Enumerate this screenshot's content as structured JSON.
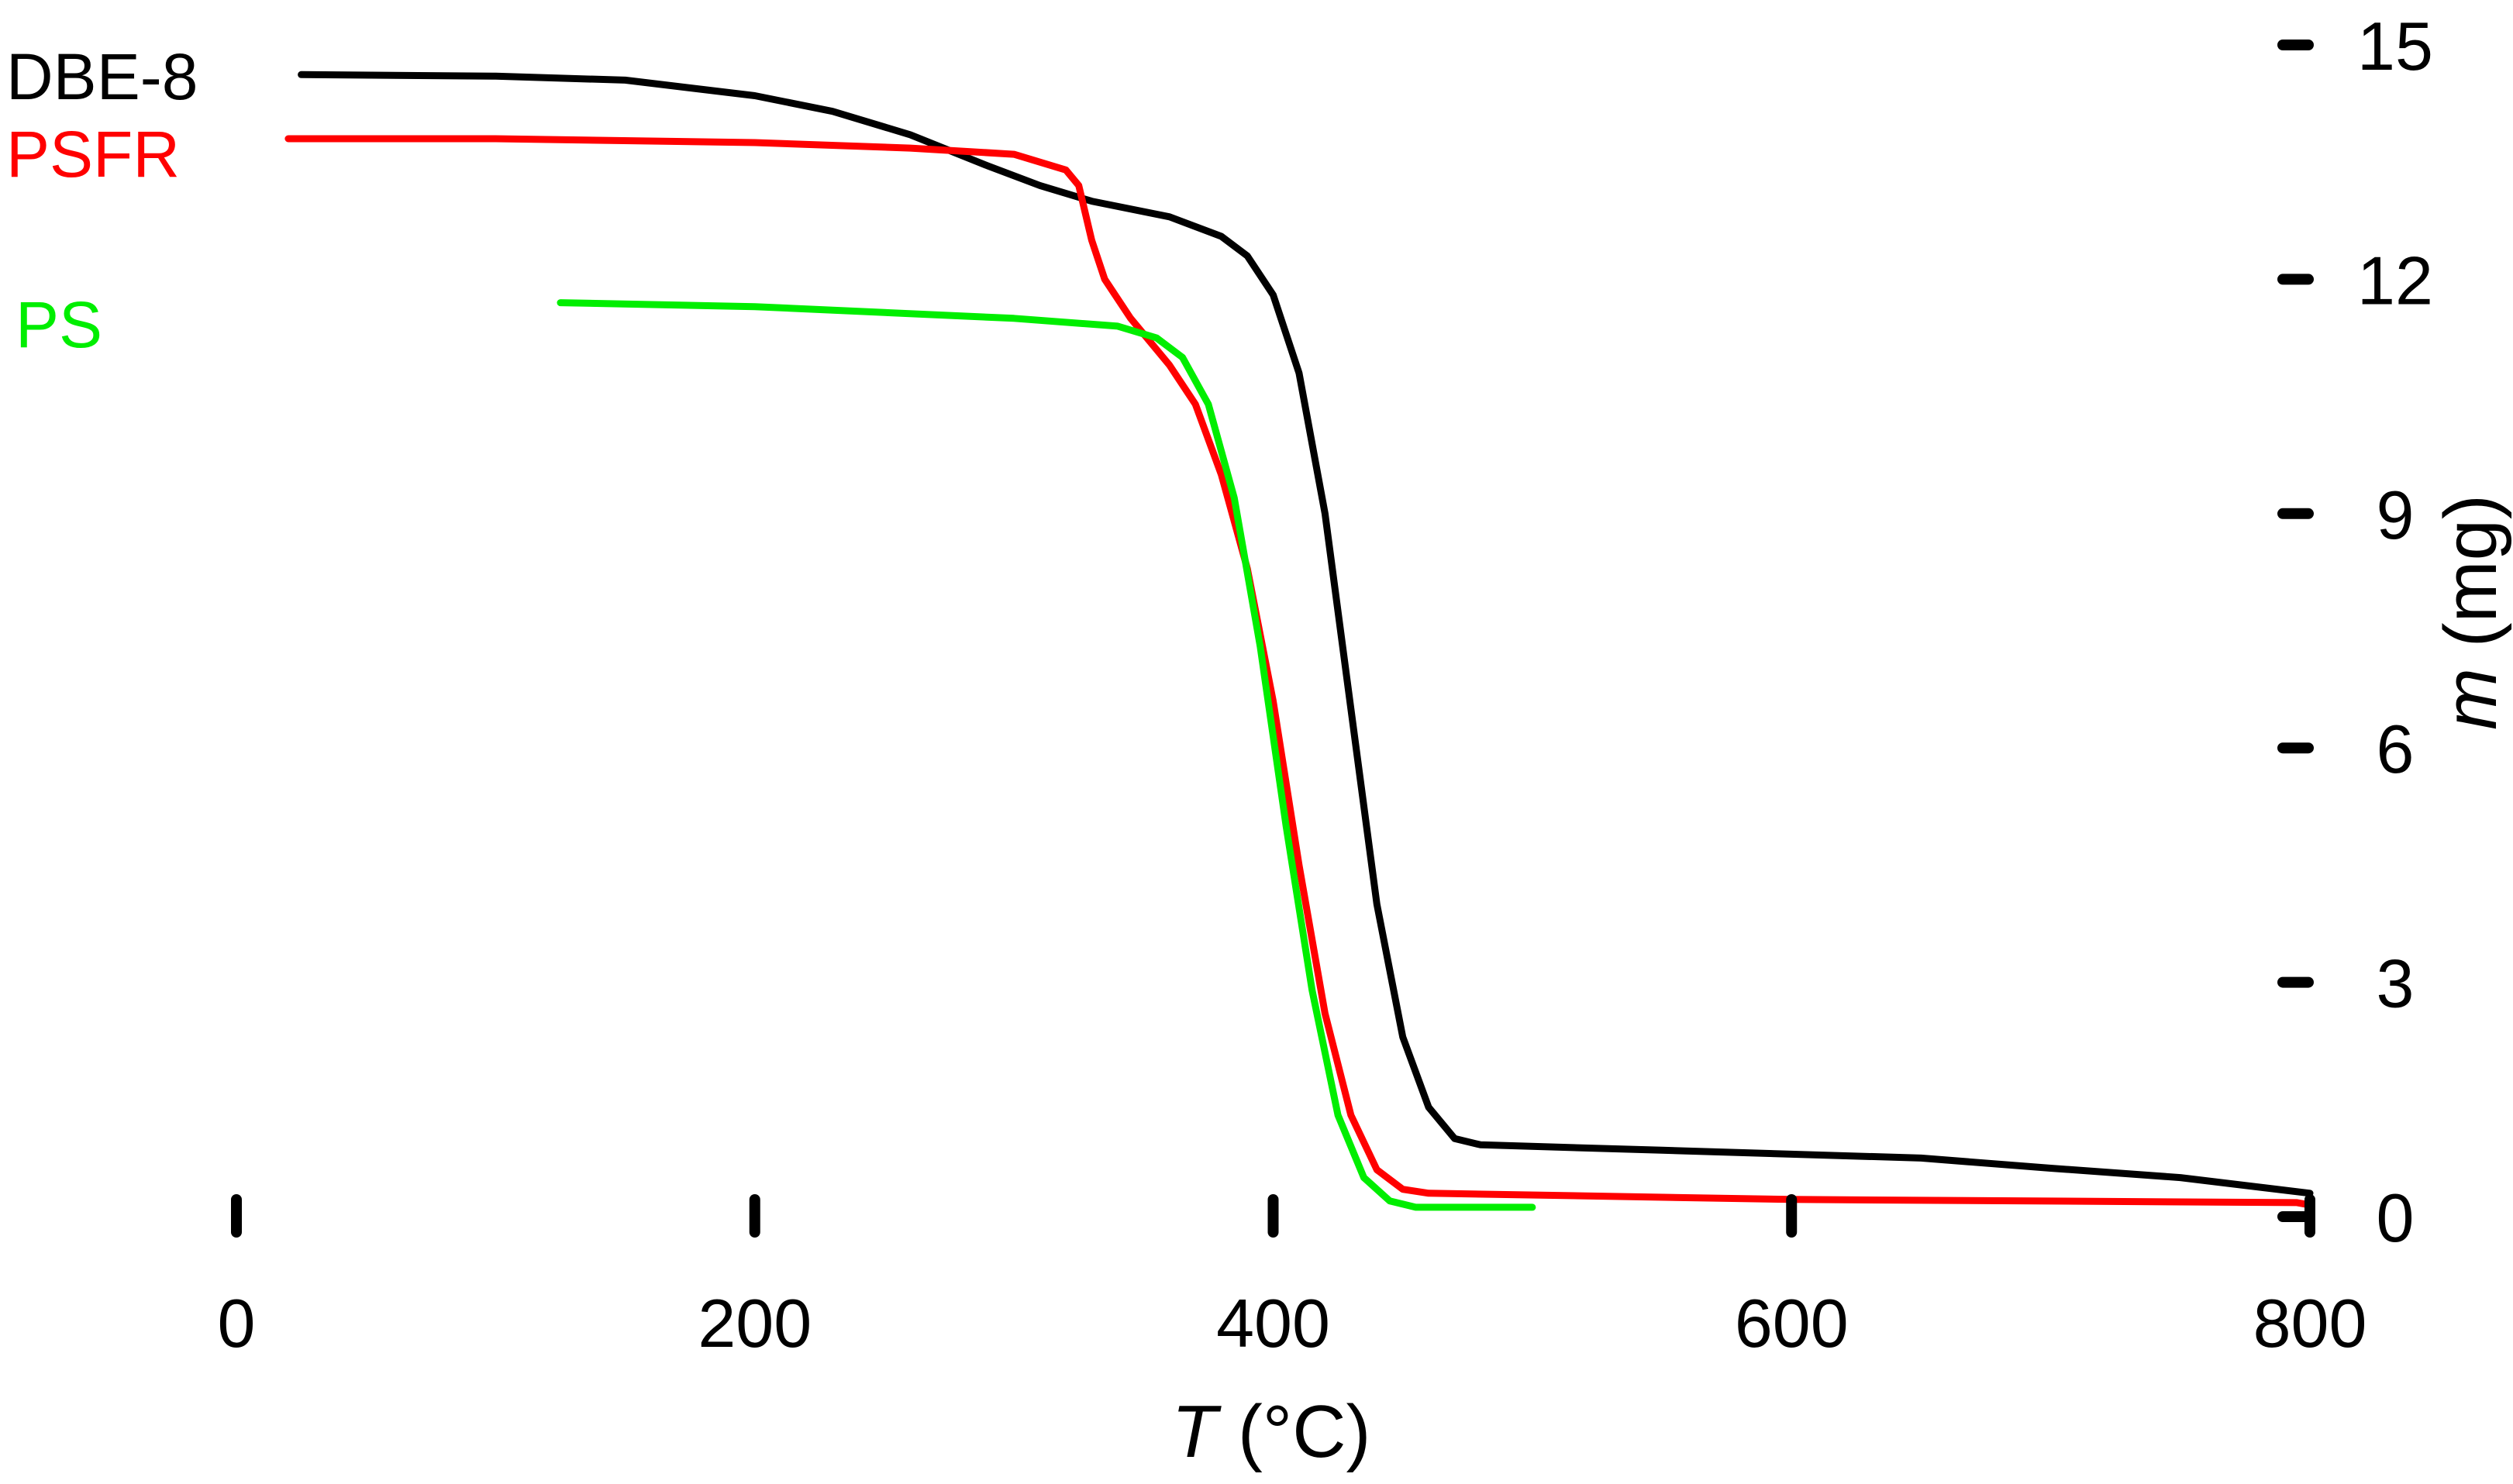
{
  "chart_data": {
    "type": "line",
    "title": "",
    "xlabel": {
      "symbol": "T",
      "unit": " (°C)"
    },
    "ylabel": {
      "symbol": "m",
      "unit": " (mg)"
    },
    "xlim": [
      0,
      800
    ],
    "ylim": [
      0,
      15
    ],
    "xticks": [
      "0",
      "200",
      "400",
      "600",
      "800"
    ],
    "yticks": [
      "0",
      "3",
      "6",
      "9",
      "12",
      "15"
    ],
    "grid": false,
    "y_axis_side": "right",
    "legend_position": "top-left",
    "series": [
      {
        "name": "DBE-8",
        "color": "#000000",
        "points": [
          [
            25,
            14.62
          ],
          [
            100,
            14.6
          ],
          [
            150,
            14.55
          ],
          [
            200,
            14.35
          ],
          [
            230,
            14.15
          ],
          [
            260,
            13.85
          ],
          [
            290,
            13.45
          ],
          [
            310,
            13.2
          ],
          [
            330,
            13.0
          ],
          [
            360,
            12.8
          ],
          [
            380,
            12.55
          ],
          [
            390,
            12.3
          ],
          [
            400,
            11.8
          ],
          [
            410,
            10.8
          ],
          [
            420,
            9.0
          ],
          [
            430,
            6.5
          ],
          [
            440,
            4.0
          ],
          [
            450,
            2.3
          ],
          [
            460,
            1.4
          ],
          [
            470,
            1.0
          ],
          [
            480,
            0.92
          ],
          [
            550,
            0.85
          ],
          [
            650,
            0.75
          ],
          [
            700,
            0.62
          ],
          [
            750,
            0.5
          ],
          [
            800,
            0.3
          ]
        ]
      },
      {
        "name": "PSFR",
        "color": "#ff0000",
        "points": [
          [
            20,
            13.8
          ],
          [
            100,
            13.8
          ],
          [
            200,
            13.75
          ],
          [
            260,
            13.68
          ],
          [
            300,
            13.6
          ],
          [
            320,
            13.4
          ],
          [
            325,
            13.2
          ],
          [
            330,
            12.5
          ],
          [
            335,
            12.0
          ],
          [
            345,
            11.5
          ],
          [
            360,
            10.9
          ],
          [
            370,
            10.4
          ],
          [
            380,
            9.5
          ],
          [
            390,
            8.3
          ],
          [
            400,
            6.6
          ],
          [
            410,
            4.5
          ],
          [
            420,
            2.6
          ],
          [
            430,
            1.3
          ],
          [
            440,
            0.6
          ],
          [
            450,
            0.35
          ],
          [
            460,
            0.3
          ],
          [
            600,
            0.22
          ],
          [
            795,
            0.18
          ],
          [
            800,
            0.15
          ]
        ]
      },
      {
        "name": "PS",
        "color": "#00ee00",
        "points": [
          [
            125,
            11.7
          ],
          [
            200,
            11.65
          ],
          [
            300,
            11.5
          ],
          [
            340,
            11.4
          ],
          [
            355,
            11.25
          ],
          [
            365,
            11.0
          ],
          [
            375,
            10.4
          ],
          [
            385,
            9.2
          ],
          [
            395,
            7.3
          ],
          [
            405,
            5.0
          ],
          [
            415,
            2.9
          ],
          [
            425,
            1.3
          ],
          [
            435,
            0.5
          ],
          [
            445,
            0.2
          ],
          [
            455,
            0.12
          ],
          [
            500,
            0.12
          ]
        ]
      }
    ]
  }
}
